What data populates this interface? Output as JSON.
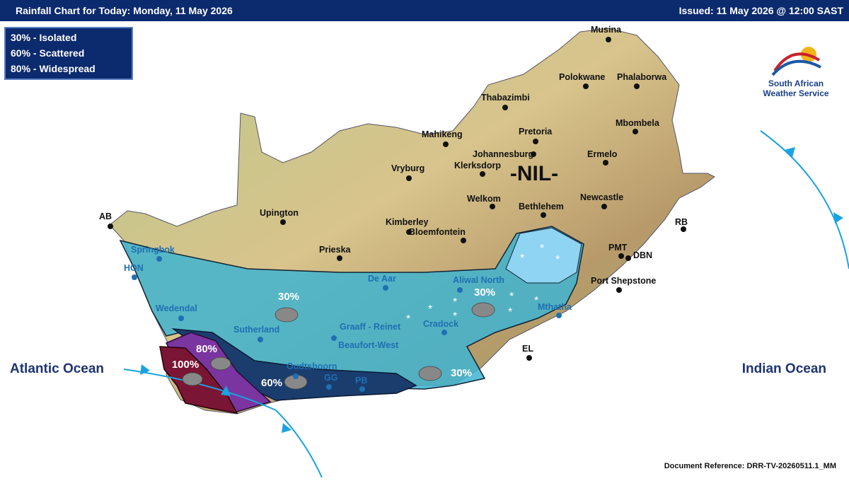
{
  "header": {
    "title": "Rainfall Chart for Today: Monday, 11 May 2026",
    "issued": "Issued: 11 May 2026 @ 12:00 SAST"
  },
  "legend": [
    "30% - Isolated",
    "60% - Scattered",
    "80% - Widespread"
  ],
  "logo": {
    "line1": "South African",
    "line2": "Weather Service"
  },
  "oceans": [
    "Atlantic Ocean",
    "Indian Ocean"
  ],
  "zones": [
    "-NIL-",
    "30%",
    "30%",
    "30%",
    "60%",
    "80%",
    "100%"
  ],
  "places": [
    "Musina",
    "Polokwane",
    "Phalaborwa",
    "Thabazimbi",
    "Mahikeng",
    "Pretoria",
    "Johannesburg",
    "Mbombela",
    "Klerksdorp",
    "Ermelo",
    "Vryburg",
    "Welkom",
    "Newcastle",
    "Bethlehem",
    "AB",
    "Upington",
    "Kimberley",
    "Bloemfontein",
    "RB",
    "Prieska",
    "PMT",
    "DBN",
    "Port Shepstone",
    "EL"
  ],
  "zone_places": [
    "Springbok",
    "HON",
    "Wedendal",
    "Sutherland",
    "De Aar",
    "Aliwal North",
    "Graaff - Reinet",
    "Cradock",
    "Beaufort-West",
    "Oudtshoorn",
    "GG",
    "PB",
    "Mthatha"
  ],
  "footer": {
    "reference": "Document Reference: DRR-TV-20260511.1_MM"
  }
}
